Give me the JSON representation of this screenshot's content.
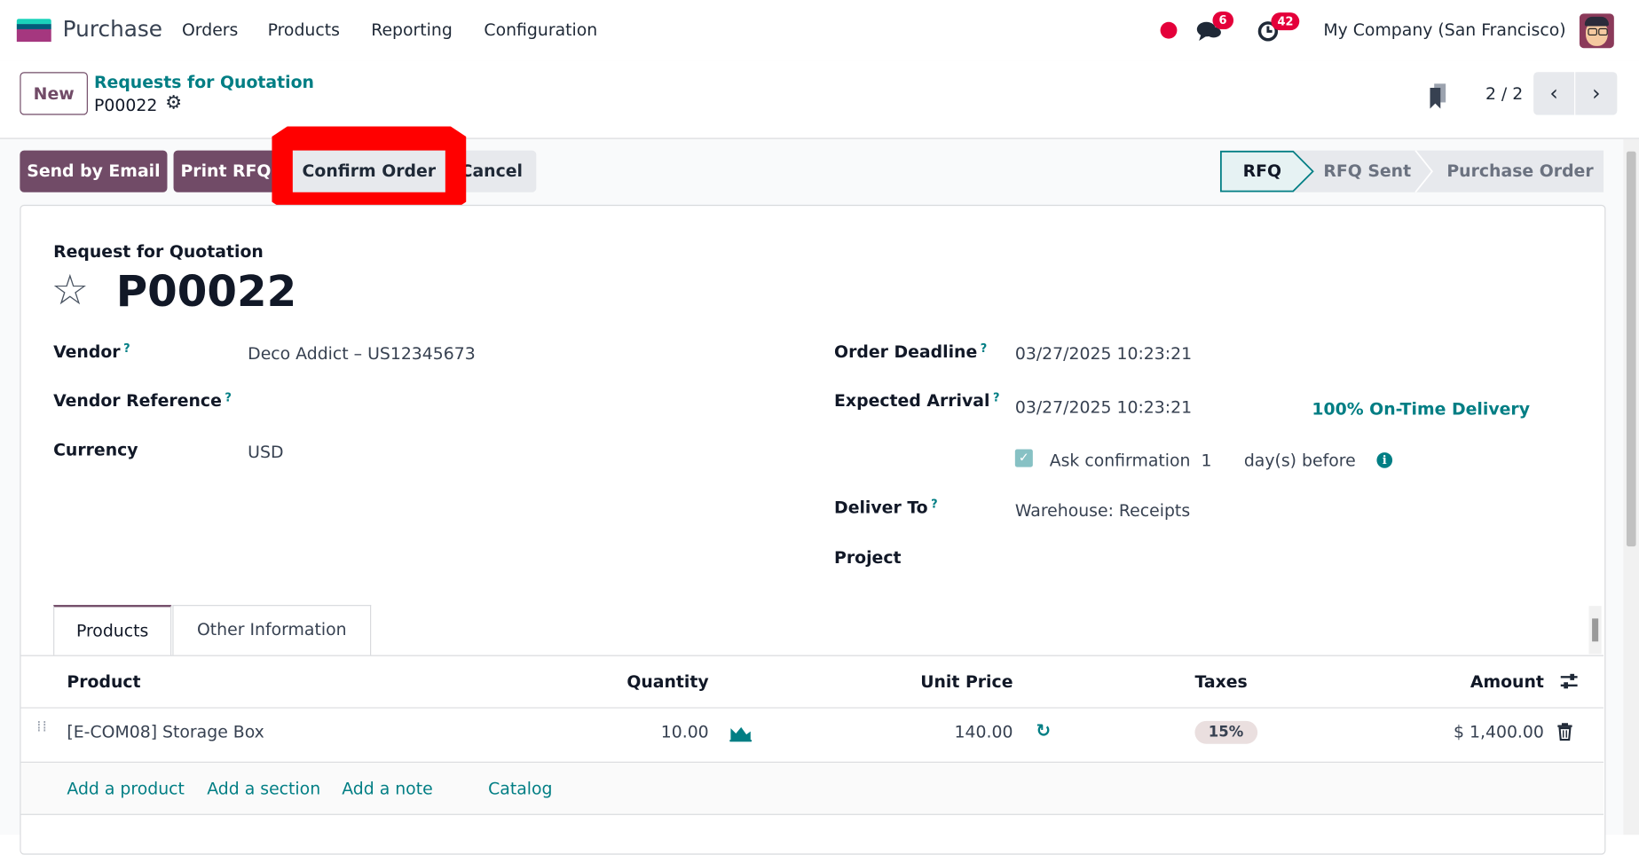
{
  "navbar": {
    "app_name": "Purchase",
    "menu": [
      "Orders",
      "Products",
      "Reporting",
      "Configuration"
    ],
    "messages_count": "6",
    "activities_count": "42",
    "company": "My Company (San Francisco)",
    "status_dot_color": "#e4003a"
  },
  "control_panel": {
    "new_label": "New",
    "breadcrumb_parent": "Requests for Quotation",
    "breadcrumb_current": "P00022",
    "pager": "2 / 2"
  },
  "actions": {
    "send_email": "Send by Email",
    "print_rfq": "Print RFQ",
    "confirm_order": "Confirm Order",
    "cancel": "Cancel",
    "highlight_color": "#ff0000"
  },
  "status_bar": {
    "steps": [
      "RFQ",
      "RFQ Sent",
      "Purchase Order"
    ],
    "active": "RFQ"
  },
  "form": {
    "subtitle": "Request for Quotation",
    "title": "P00022",
    "vendor_label": "Vendor",
    "vendor_value": "Deco Addict – US12345673",
    "vendor_ref_label": "Vendor Reference",
    "currency_label": "Currency",
    "currency_value": "USD",
    "deadline_label": "Order Deadline",
    "deadline_value": "03/27/2025 10:23:21",
    "arrival_label": "Expected Arrival",
    "arrival_value": "03/27/2025 10:23:21",
    "on_time": "100% On-Time Delivery",
    "ask_confirmation_label": "Ask confirmation",
    "ask_confirmation_checked": true,
    "ask_days": "1",
    "days_before": "day(s) before",
    "deliver_to_label": "Deliver To",
    "deliver_to_value": "Warehouse: Receipts",
    "project_label": "Project",
    "help_mark": "?"
  },
  "tabs": [
    "Products",
    "Other Information"
  ],
  "table": {
    "columns": [
      "Product",
      "Quantity",
      "Unit Price",
      "Taxes",
      "Amount"
    ],
    "rows": [
      {
        "product": "[E-COM08] Storage Box",
        "quantity": "10.00",
        "unit_price": "140.00",
        "taxes": "15%",
        "amount": "$ 1,400.00"
      }
    ],
    "add_links": [
      "Add a product",
      "Add a section",
      "Add a note",
      "Catalog"
    ]
  }
}
